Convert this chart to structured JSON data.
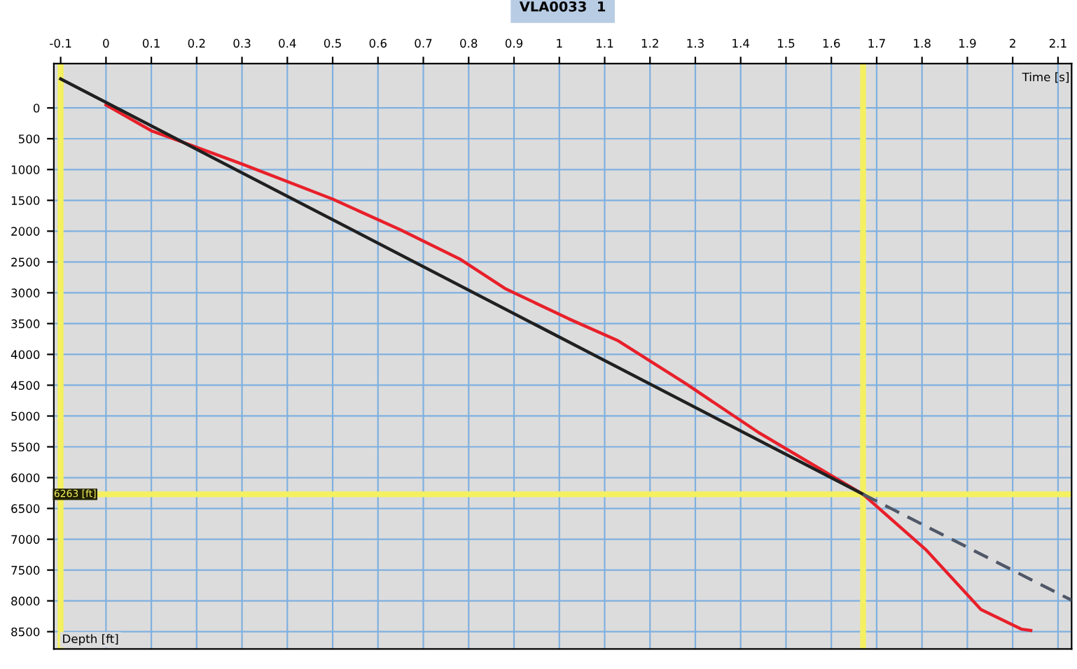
{
  "chart_data": {
    "type": "line",
    "title": "VLA0033  1",
    "xlabel": "Time [s]",
    "ylabel": "Depth [ft]",
    "xlim": [
      -0.115,
      2.13
    ],
    "ylim": [
      8780,
      -720
    ],
    "xticks": [
      -0.1,
      0,
      0.1,
      0.2,
      0.3,
      0.4,
      0.5,
      0.6,
      0.7,
      0.8,
      0.9,
      1,
      1.1,
      1.2,
      1.3,
      1.4,
      1.5,
      1.6,
      1.7,
      1.8,
      1.9,
      2,
      2.1
    ],
    "yticks": [
      0,
      500,
      1000,
      1500,
      2000,
      2500,
      3000,
      3500,
      4000,
      4500,
      5000,
      5500,
      6000,
      6500,
      7000,
      7500,
      8000,
      8500
    ],
    "grid": true,
    "series": [
      {
        "color": "#e8202a",
        "line_style": "solid",
        "x": [
          0.0,
          0.1,
          0.3,
          0.5,
          0.65,
          0.78,
          0.88,
          1.02,
          1.13,
          1.28,
          1.44,
          1.67,
          1.81,
          1.93,
          2.02,
          2.04
        ],
        "values": [
          -50,
          370,
          910,
          1480,
          1980,
          2450,
          2930,
          3420,
          3780,
          4480,
          5270,
          6270,
          7180,
          8140,
          8460,
          8480
        ]
      },
      {
        "color": "#202020",
        "line_style": "solid",
        "x": [
          -0.1,
          1.67
        ],
        "values": [
          -470,
          6270
        ]
      },
      {
        "color": "#505868",
        "line_style": "dashed",
        "x": [
          1.67,
          2.13
        ],
        "values": [
          6270,
          7990
        ]
      }
    ],
    "ref_lines": [
      {
        "axis": "x",
        "value": 1.67,
        "color": "#f4f060"
      },
      {
        "axis": "x",
        "value": -0.1,
        "color": "#f4f060"
      },
      {
        "axis": "y",
        "value": 6270,
        "label": "6263 [ft]",
        "color": "#f4f060"
      }
    ]
  }
}
